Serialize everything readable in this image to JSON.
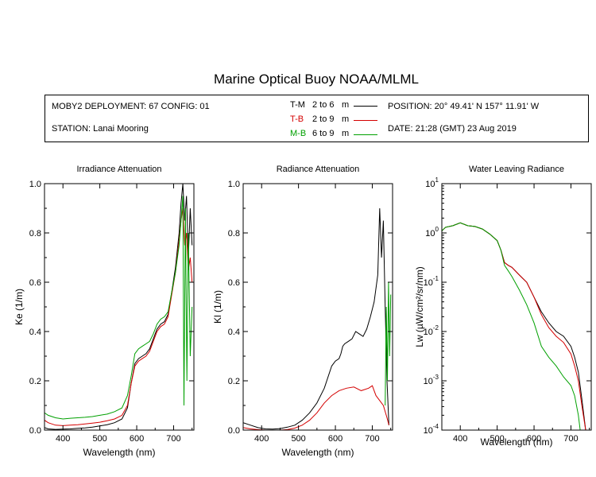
{
  "title": "Marine Optical Buoy NOAA/MLML",
  "info": {
    "deployment": "MOBY2 DEPLOYMENT: 67 CONFIG: 01",
    "station": "STATION: Lanai Mooring",
    "position": "POSITION: 20° 49.41' N 157° 11.91' W",
    "date": "DATE: 21:28 (GMT) 23 Aug 2019",
    "legend": [
      {
        "key": "T-M",
        "range": "2 to 6",
        "unit": "m",
        "color": "#000000"
      },
      {
        "key": "T-B",
        "range": "2 to 9",
        "unit": "m",
        "color": "#d40000"
      },
      {
        "key": "M-B",
        "range": "6 to 9",
        "unit": "m",
        "color": "#00a000"
      }
    ]
  },
  "chart_data": [
    {
      "type": "line",
      "title": "Irradiance Attenuation",
      "xlabel": "Wavelength (nm)",
      "ylabel": "Ke (1/m)",
      "xlim": [
        350,
        755
      ],
      "ylim": [
        0,
        1
      ],
      "xticks": [
        "400",
        "500",
        "600",
        "700"
      ],
      "yticks": [
        "0.0",
        "0.2",
        "0.4",
        "0.6",
        "0.8",
        "1.0"
      ],
      "series": [
        {
          "name": "T-M",
          "color": "#000000",
          "x": [
            350,
            360,
            380,
            400,
            420,
            440,
            460,
            480,
            500,
            520,
            540,
            560,
            575,
            585,
            595,
            605,
            615,
            625,
            635,
            645,
            655,
            665,
            675,
            685,
            695,
            705,
            715,
            720,
            725,
            730,
            735,
            740,
            745,
            750
          ],
          "y": [
            0.01,
            0.005,
            0.003,
            0.004,
            0.005,
            0.007,
            0.009,
            0.012,
            0.017,
            0.022,
            0.03,
            0.045,
            0.09,
            0.19,
            0.27,
            0.29,
            0.3,
            0.31,
            0.33,
            0.37,
            0.41,
            0.43,
            0.44,
            0.47,
            0.56,
            0.66,
            0.8,
            0.92,
            1.0,
            0.85,
            0.95,
            0.7,
            0.9,
            0.75
          ]
        },
        {
          "name": "T-B",
          "color": "#d40000",
          "x": [
            350,
            360,
            380,
            400,
            420,
            440,
            460,
            480,
            500,
            520,
            540,
            560,
            575,
            585,
            595,
            605,
            615,
            625,
            635,
            645,
            655,
            665,
            675,
            685,
            695,
            705,
            715,
            720,
            725,
            730,
            735,
            740,
            745,
            750
          ],
          "y": [
            0.04,
            0.03,
            0.02,
            0.018,
            0.02,
            0.022,
            0.025,
            0.028,
            0.032,
            0.038,
            0.045,
            0.06,
            0.1,
            0.19,
            0.26,
            0.28,
            0.29,
            0.3,
            0.32,
            0.36,
            0.4,
            0.42,
            0.43,
            0.46,
            0.55,
            0.64,
            0.77,
            0.85,
            0.9,
            0.75,
            0.8,
            0.65,
            0.7,
            0.6
          ]
        },
        {
          "name": "M-B",
          "color": "#00a000",
          "x": [
            350,
            360,
            380,
            400,
            420,
            440,
            460,
            480,
            500,
            520,
            540,
            560,
            575,
            585,
            595,
            605,
            615,
            625,
            635,
            645,
            655,
            665,
            675,
            685,
            695,
            705,
            715,
            720,
            725,
            728,
            732,
            736,
            740,
            745,
            750
          ],
          "y": [
            0.07,
            0.06,
            0.05,
            0.045,
            0.048,
            0.05,
            0.052,
            0.055,
            0.06,
            0.065,
            0.075,
            0.09,
            0.14,
            0.22,
            0.31,
            0.33,
            0.34,
            0.35,
            0.36,
            0.39,
            0.43,
            0.45,
            0.46,
            0.48,
            0.56,
            0.64,
            0.75,
            0.85,
            0.95,
            0.1,
            0.9,
            0.2,
            0.8,
            0.3,
            0.5
          ]
        }
      ]
    },
    {
      "type": "line",
      "title": "Radiance Attenuation",
      "xlabel": "Wavelength (nm)",
      "ylabel": "Kl (1/m)",
      "xlim": [
        350,
        755
      ],
      "ylim": [
        0,
        1
      ],
      "xticks": [
        "400",
        "500",
        "600",
        "700"
      ],
      "yticks": [
        "0.0",
        "0.2",
        "0.4",
        "0.6",
        "0.8",
        "1.0"
      ],
      "series": [
        {
          "name": "T-M",
          "color": "#000000",
          "x": [
            350,
            370,
            390,
            410,
            430,
            450,
            470,
            490,
            510,
            530,
            550,
            570,
            590,
            600,
            610,
            615,
            620,
            625,
            635,
            645,
            655,
            665,
            675,
            685,
            695,
            705,
            715,
            720,
            725,
            730,
            735,
            740,
            745
          ],
          "y": [
            0.03,
            0.02,
            0.01,
            0.005,
            0.004,
            0.006,
            0.012,
            0.02,
            0.04,
            0.07,
            0.11,
            0.17,
            0.26,
            0.28,
            0.29,
            0.31,
            0.34,
            0.35,
            0.36,
            0.37,
            0.4,
            0.39,
            0.38,
            0.41,
            0.46,
            0.52,
            0.63,
            0.9,
            0.7,
            0.85,
            0.5,
            0.2,
            0.02
          ]
        },
        {
          "name": "T-B",
          "color": "#d40000",
          "x": [
            350,
            370,
            390,
            410,
            430,
            450,
            470,
            490,
            510,
            530,
            550,
            570,
            590,
            610,
            630,
            650,
            670,
            690,
            700,
            710,
            720,
            730,
            740,
            745
          ],
          "y": [
            0.01,
            0.005,
            0.002,
            0.0,
            0.0,
            0.0,
            0.002,
            0.008,
            0.02,
            0.04,
            0.07,
            0.11,
            0.14,
            0.16,
            0.17,
            0.175,
            0.16,
            0.17,
            0.18,
            0.14,
            0.12,
            0.1,
            0.05,
            0.02
          ]
        },
        {
          "name": "M-B",
          "color": "#00a000",
          "x": [
            735,
            738,
            741,
            744,
            747,
            750
          ],
          "y": [
            0.1,
            0.5,
            0.2,
            0.6,
            0.3,
            0.55
          ]
        }
      ]
    },
    {
      "type": "line",
      "title": "Water Leaving Radiance",
      "xlabel": "Wavelength (nm)",
      "ylabel": "Lw (µW/cm²/sr/nm)",
      "yscale": "log",
      "xlim": [
        350,
        755
      ],
      "ylim": [
        0.0001,
        10
      ],
      "xticks": [
        "400",
        "500",
        "600",
        "700"
      ],
      "yticks": [
        "10^-4",
        "10^-3",
        "10^-2",
        "10^-1",
        "10^0",
        "10^1"
      ],
      "series": [
        {
          "name": "T-M",
          "color": "#000000",
          "x": [
            350,
            360,
            380,
            400,
            420,
            440,
            460,
            480,
            500,
            510,
            520,
            530,
            540,
            560,
            580,
            600,
            620,
            640,
            660,
            680,
            700,
            710,
            720,
            730,
            740
          ],
          "y": [
            1.1,
            1.3,
            1.4,
            1.6,
            1.4,
            1.35,
            1.2,
            0.95,
            0.7,
            0.45,
            0.25,
            0.22,
            0.2,
            0.14,
            0.1,
            0.05,
            0.025,
            0.015,
            0.01,
            0.008,
            0.005,
            0.003,
            0.0015,
            0.0004,
            0.0001
          ]
        },
        {
          "name": "T-B",
          "color": "#d40000",
          "x": [
            350,
            360,
            380,
            400,
            420,
            440,
            460,
            480,
            500,
            510,
            520,
            530,
            540,
            560,
            580,
            600,
            620,
            640,
            660,
            680,
            700,
            710,
            720,
            730,
            740
          ],
          "y": [
            1.1,
            1.3,
            1.4,
            1.6,
            1.4,
            1.35,
            1.2,
            0.95,
            0.7,
            0.45,
            0.25,
            0.22,
            0.2,
            0.14,
            0.1,
            0.05,
            0.022,
            0.012,
            0.008,
            0.006,
            0.0035,
            0.002,
            0.001,
            0.0003,
            0.0001
          ]
        },
        {
          "name": "M-B",
          "color": "#00a000",
          "x": [
            350,
            360,
            380,
            400,
            420,
            440,
            460,
            480,
            500,
            510,
            520,
            530,
            540,
            560,
            580,
            600,
            620,
            640,
            660,
            680,
            700,
            710,
            720,
            725
          ],
          "y": [
            1.1,
            1.3,
            1.4,
            1.6,
            1.4,
            1.35,
            1.2,
            0.95,
            0.7,
            0.45,
            0.22,
            0.17,
            0.13,
            0.07,
            0.035,
            0.015,
            0.005,
            0.003,
            0.002,
            0.0012,
            0.0008,
            0.0005,
            0.0002,
            0.0001
          ]
        }
      ]
    }
  ]
}
